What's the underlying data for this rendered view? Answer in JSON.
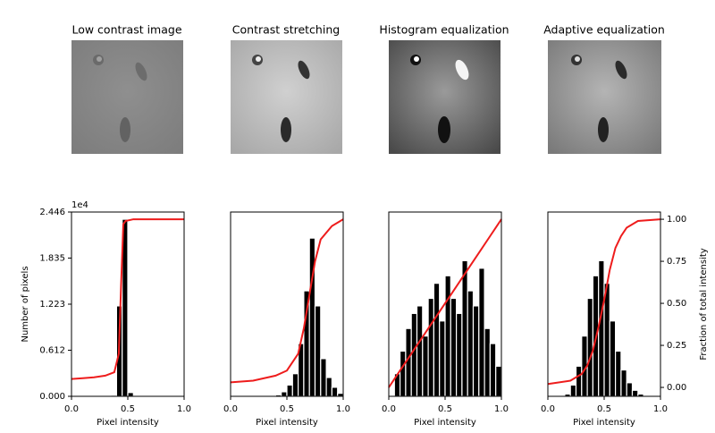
{
  "chart_data": [
    {
      "type": "histogram",
      "title": "Low contrast image",
      "xlabel": "Pixel intensity",
      "ylabel": "Number of pixels",
      "y_offset_label": "1e4",
      "bins": [
        0,
        0.05,
        0.1,
        0.15,
        0.2,
        0.25,
        0.3,
        0.35,
        0.4,
        0.45,
        0.5,
        0.55,
        0.6,
        0.65,
        0.7,
        0.75,
        0.8,
        0.85,
        0.9,
        0.95,
        1
      ],
      "counts": [
        0,
        0,
        0,
        0,
        0,
        0,
        0,
        150,
        12000,
        23500,
        500,
        0,
        0,
        0,
        0,
        0,
        0,
        0,
        0,
        0
      ],
      "color": "#000000",
      "xlim": [
        0,
        1
      ],
      "xticks": [
        {
          "value": 0,
          "label": "0.0"
        },
        {
          "value": 0.5,
          "label": "0.5"
        },
        {
          "value": 1,
          "label": "1.0"
        }
      ],
      "ylim": [
        0,
        24460
      ],
      "yticks": [
        {
          "value": 0,
          "label": "0.000"
        },
        {
          "value": 6120,
          "label": "0.612"
        },
        {
          "value": 12230,
          "label": "1.223"
        },
        {
          "value": 18350,
          "label": "1.835"
        },
        {
          "value": 24460,
          "label": "2.446"
        }
      ],
      "y2lim": [
        -0.053,
        1.043
      ],
      "cdf": {
        "x": [
          0,
          0.1,
          0.2,
          0.3,
          0.38,
          0.42,
          0.44,
          0.46,
          0.48,
          0.55,
          1
        ],
        "values": [
          0.05,
          0.055,
          0.06,
          0.07,
          0.09,
          0.2,
          0.6,
          0.97,
          0.99,
          1,
          1
        ],
        "color": "#ee1c1c",
        "axis": "y2"
      }
    },
    {
      "type": "histogram",
      "title": "Contrast stretching",
      "xlabel": "Pixel intensity",
      "bins": [
        0,
        0.05,
        0.1,
        0.15,
        0.2,
        0.25,
        0.3,
        0.35,
        0.4,
        0.45,
        0.5,
        0.55,
        0.6,
        0.65,
        0.7,
        0.75,
        0.8,
        0.85,
        0.9,
        0.95,
        1
      ],
      "counts": [
        0,
        0,
        0,
        0,
        0,
        0,
        0,
        0,
        200,
        600,
        1500,
        3000,
        7000,
        14000,
        21000,
        12000,
        5000,
        2500,
        1200,
        400
      ],
      "color": "#000000",
      "xlim": [
        0,
        1
      ],
      "xticks": [
        {
          "value": 0,
          "label": "0.0"
        },
        {
          "value": 0.5,
          "label": "0.5"
        },
        {
          "value": 1,
          "label": "1.0"
        }
      ],
      "ylim": [
        0,
        24460
      ],
      "y2lim": [
        -0.053,
        1.043
      ],
      "cdf": {
        "x": [
          0,
          0.2,
          0.4,
          0.5,
          0.6,
          0.65,
          0.7,
          0.75,
          0.8,
          0.9,
          1
        ],
        "values": [
          0.03,
          0.04,
          0.07,
          0.1,
          0.2,
          0.35,
          0.55,
          0.75,
          0.88,
          0.96,
          1
        ],
        "color": "#ee1c1c",
        "axis": "y2"
      }
    },
    {
      "type": "histogram",
      "title": "Histogram equalization",
      "xlabel": "Pixel intensity",
      "bins": [
        0,
        0.05,
        0.1,
        0.15,
        0.2,
        0.25,
        0.3,
        0.35,
        0.4,
        0.45,
        0.5,
        0.55,
        0.6,
        0.65,
        0.7,
        0.75,
        0.8,
        0.85,
        0.9,
        0.95,
        1
      ],
      "counts": [
        0,
        3000,
        6000,
        9000,
        11000,
        12000,
        8000,
        13000,
        15000,
        10000,
        16000,
        13000,
        11000,
        18000,
        14000,
        12000,
        17000,
        9000,
        7000,
        4000
      ],
      "color": "#000000",
      "xlim": [
        0,
        1
      ],
      "xticks": [
        {
          "value": 0,
          "label": "0.0"
        },
        {
          "value": 0.5,
          "label": "0.5"
        },
        {
          "value": 1,
          "label": "1.0"
        }
      ],
      "ylim": [
        0,
        24460
      ],
      "y2lim": [
        -0.053,
        1.043
      ],
      "cdf": {
        "x": [
          0,
          0.1,
          0.2,
          0.3,
          0.4,
          0.5,
          0.6,
          0.7,
          0.8,
          0.9,
          1
        ],
        "values": [
          0,
          0.1,
          0.2,
          0.3,
          0.4,
          0.5,
          0.6,
          0.7,
          0.8,
          0.9,
          1
        ],
        "color": "#ee1c1c",
        "axis": "y2"
      }
    },
    {
      "type": "histogram",
      "title": "Adaptive equalization",
      "xlabel": "Pixel intensity",
      "y2label": "Fraction of total intensity",
      "bins": [
        0,
        0.05,
        0.1,
        0.15,
        0.2,
        0.25,
        0.3,
        0.35,
        0.4,
        0.45,
        0.5,
        0.55,
        0.6,
        0.65,
        0.7,
        0.75,
        0.8,
        0.85,
        0.9,
        0.95,
        1
      ],
      "counts": [
        0,
        0,
        0,
        300,
        1500,
        4000,
        8000,
        13000,
        16000,
        18000,
        15000,
        10000,
        6000,
        3500,
        1800,
        800,
        300,
        100,
        0,
        0
      ],
      "color": "#000000",
      "xlim": [
        0,
        1
      ],
      "xticks": [
        {
          "value": 0,
          "label": "0.0"
        },
        {
          "value": 0.5,
          "label": "0.5"
        },
        {
          "value": 1,
          "label": "1.0"
        }
      ],
      "ylim": [
        0,
        24460
      ],
      "y2lim": [
        -0.053,
        1.043
      ],
      "y2ticks": [
        {
          "value": 0,
          "label": "0.00"
        },
        {
          "value": 0.25,
          "label": "0.25"
        },
        {
          "value": 0.5,
          "label": "0.50"
        },
        {
          "value": 0.75,
          "label": "0.75"
        },
        {
          "value": 1,
          "label": "1.00"
        }
      ],
      "cdf": {
        "x": [
          0,
          0.2,
          0.3,
          0.35,
          0.4,
          0.45,
          0.5,
          0.55,
          0.6,
          0.65,
          0.7,
          0.8,
          1
        ],
        "values": [
          0.02,
          0.04,
          0.08,
          0.13,
          0.22,
          0.36,
          0.52,
          0.7,
          0.83,
          0.9,
          0.95,
          0.99,
          1
        ],
        "color": "#ee1c1c",
        "axis": "y2"
      }
    }
  ]
}
